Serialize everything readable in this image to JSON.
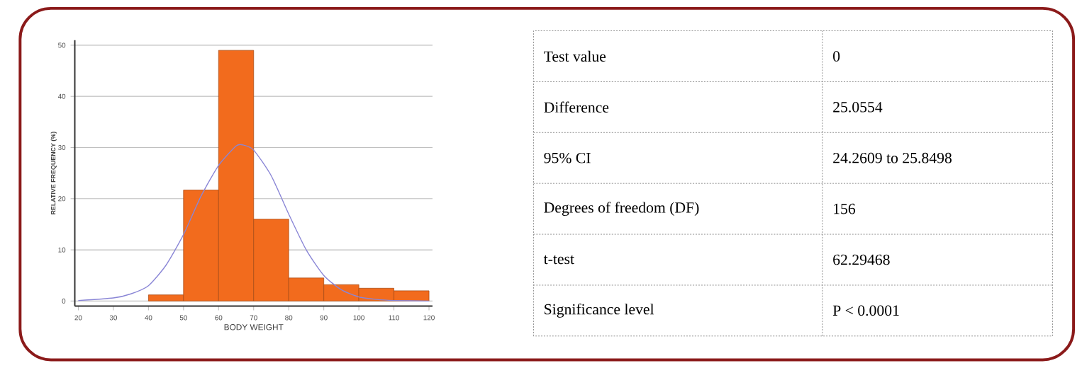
{
  "chart_data": [
    {
      "type": "histogram",
      "xlabel": "BODY WEIGHT",
      "ylabel": "RELATIVE FREQUENCY (%)",
      "bins": [
        40,
        50,
        60,
        70,
        80,
        90,
        100,
        110,
        120
      ],
      "values": [
        1.2,
        21.7,
        49,
        16,
        4.5,
        3.2,
        2.5,
        2
      ],
      "color": "#f26b1d",
      "series": [
        {
          "type": "line",
          "color": "#8a86d6",
          "x": [
            20,
            30,
            35,
            40,
            45,
            50,
            55,
            60,
            65,
            67,
            70,
            75,
            80,
            85,
            90,
            95,
            100,
            105,
            110,
            120
          ],
          "values": [
            0.1,
            0.6,
            1.4,
            3,
            7,
            13,
            20.5,
            26.5,
            30.3,
            30.5,
            29.5,
            24.5,
            17,
            10,
            5,
            2.2,
            0.8,
            0.3,
            0.1,
            0
          ]
        }
      ],
      "xlim": [
        19,
        121
      ],
      "ylim": [
        -1,
        51
      ],
      "xticks": [
        20,
        30,
        40,
        50,
        60,
        70,
        80,
        90,
        100,
        110,
        120
      ],
      "yticks": [
        0,
        10,
        20,
        30,
        40,
        50
      ],
      "grid": "y"
    },
    {
      "type": "other",
      "annotations": [
        "Test value",
        "0",
        "Difference",
        "25.0554",
        "95% CI",
        "24.2609 to 25.8498",
        "Degrees of freedom (DF)",
        "156",
        "t-test",
        "62.29468",
        "Significance level",
        "P < 0.0001"
      ]
    }
  ]
}
